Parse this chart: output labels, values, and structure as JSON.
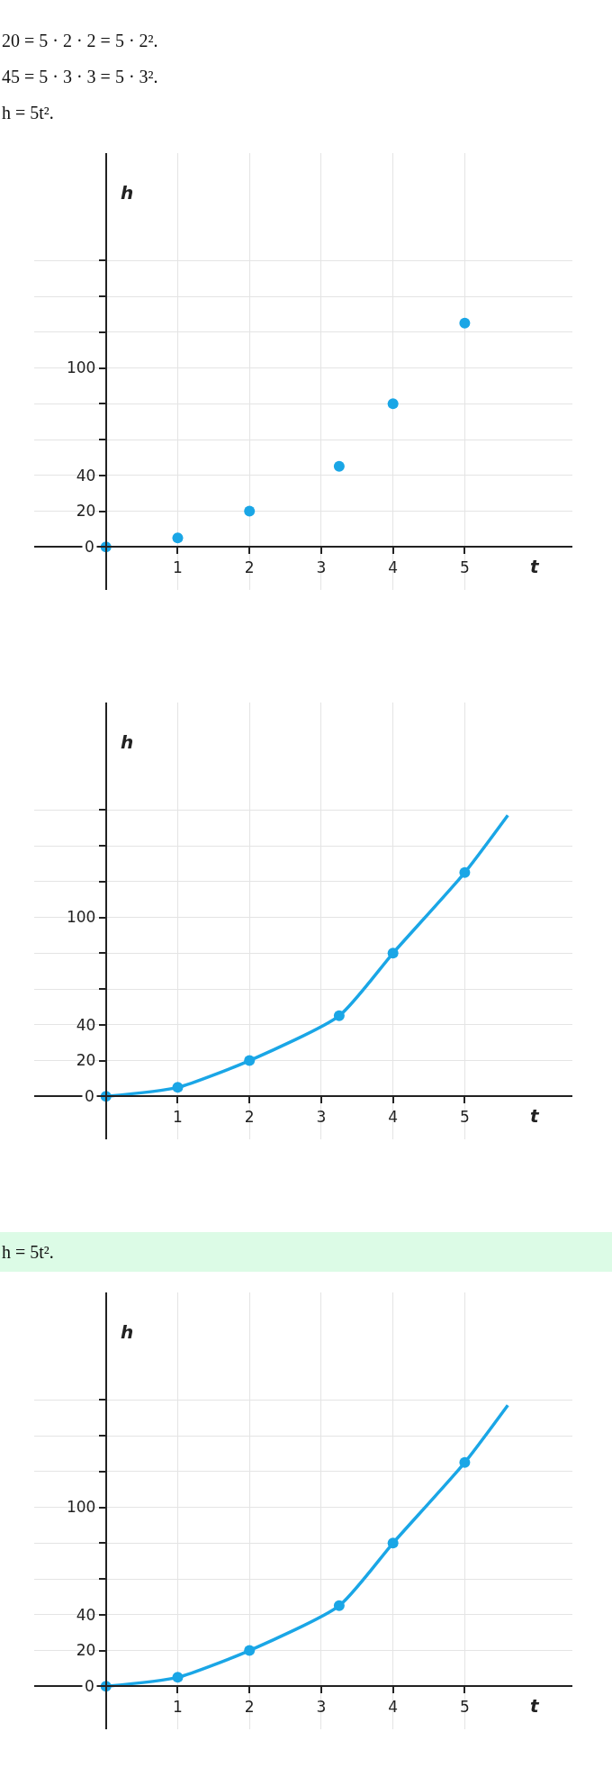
{
  "chart_data": [
    {
      "type": "scatter",
      "annotations": [
        "20 = 5 · 2 · 2 = 5 · 2².",
        "45 = 5 · 3 · 3 = 5 · 3².",
        "h = 5t²."
      ],
      "xlabel": "t",
      "ylabel": "h",
      "x": [
        0,
        1,
        2,
        3.25,
        4,
        5
      ],
      "series": [
        {
          "color": "#1aa6e6",
          "values": [
            0,
            5,
            20,
            45,
            80,
            125
          ]
        }
      ],
      "marker": "circle",
      "xlim": [
        -1,
        6.5
      ],
      "ylim": [
        -24,
        220
      ],
      "xticks": [
        1,
        2,
        3,
        4,
        5
      ],
      "yticks": [
        0,
        20,
        40,
        {
          "value": 60,
          "label": null
        },
        {
          "value": 80,
          "label": null
        },
        100,
        {
          "value": 120,
          "label": null
        },
        {
          "value": 140,
          "label": null
        },
        {
          "value": 160,
          "label": null
        }
      ],
      "grid": true
    },
    {
      "type": "line",
      "xlabel": "t",
      "ylabel": "h",
      "x": [
        0,
        1,
        2,
        3.25,
        4,
        5
      ],
      "series": [
        {
          "type": "line",
          "color": "#1aa6e6",
          "marker": "none",
          "x": [
            0,
            1,
            2,
            3.25,
            4,
            5,
            5.6
          ],
          "values": [
            0,
            5,
            20,
            45,
            80,
            125,
            157
          ]
        },
        {
          "type": "scatter",
          "color": "#1aa6e6",
          "values": [
            0,
            5,
            20,
            45,
            80,
            125
          ]
        }
      ],
      "marker": "circle",
      "xlim": [
        -1,
        6.5
      ],
      "ylim": [
        -24,
        220
      ],
      "xticks": [
        1,
        2,
        3,
        4,
        5
      ],
      "yticks": [
        0,
        20,
        40,
        {
          "value": 60,
          "label": null
        },
        {
          "value": 80,
          "label": null
        },
        100,
        {
          "value": 120,
          "label": null
        },
        {
          "value": 140,
          "label": null
        },
        {
          "value": 160,
          "label": null
        }
      ],
      "grid": true
    },
    {
      "type": "line",
      "annotations": [
        "h = 5t²."
      ],
      "xlabel": "t",
      "ylabel": "h",
      "x": [
        0,
        1,
        2,
        3.25,
        4,
        5
      ],
      "series": [
        {
          "type": "line",
          "color": "#1aa6e6",
          "marker": "none",
          "x": [
            0,
            1,
            2,
            3.25,
            4,
            5,
            5.6
          ],
          "values": [
            0,
            5,
            20,
            45,
            80,
            125,
            157
          ]
        },
        {
          "type": "scatter",
          "color": "#1aa6e6",
          "values": [
            0,
            5,
            20,
            45,
            80,
            125
          ]
        }
      ],
      "marker": "circle",
      "xlim": [
        -1,
        6.5
      ],
      "ylim": [
        -24,
        220
      ],
      "xticks": [
        1,
        2,
        3,
        4,
        5
      ],
      "yticks": [
        0,
        20,
        40,
        {
          "value": 60,
          "label": null
        },
        {
          "value": 80,
          "label": null
        },
        100,
        {
          "value": 120,
          "label": null
        },
        {
          "value": 140,
          "label": null
        },
        {
          "value": 160,
          "label": null
        }
      ],
      "grid": true
    }
  ]
}
